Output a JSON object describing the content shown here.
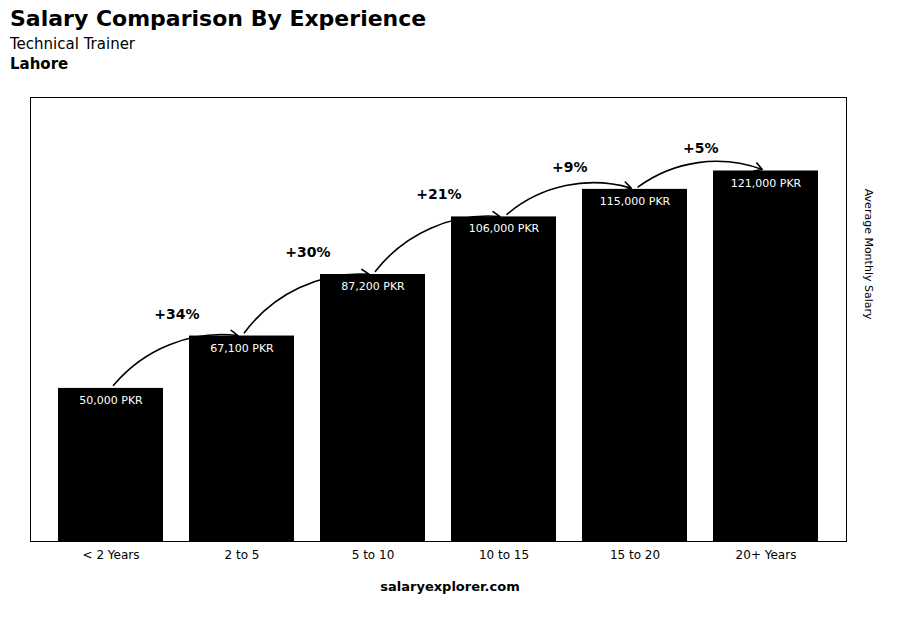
{
  "chart_data": {
    "type": "bar",
    "title": "Salary Comparison By Experience",
    "subtitle": "Technical Trainer",
    "city": "Lahore",
    "y_label": "Average Monthly Salary",
    "footer": "salaryexplorer.com",
    "categories": [
      "< 2 Years",
      "2 to 5",
      "5 to 10",
      "10 to 15",
      "15 to 20",
      "20+ Years"
    ],
    "values": [
      50000,
      67100,
      87200,
      106000,
      115000,
      121000
    ],
    "value_labels": [
      "50,000 PKR",
      "67,100 PKR",
      "87,200 PKR",
      "106,000 PKR",
      "115,000 PKR",
      "121,000 PKR"
    ],
    "data_labels": true,
    "annotations": [
      "+34%",
      "+30%",
      "+21%",
      "+9%",
      "+5%"
    ],
    "ylim": [
      0,
      145000
    ],
    "tick_labels": "x",
    "grid": false
  }
}
